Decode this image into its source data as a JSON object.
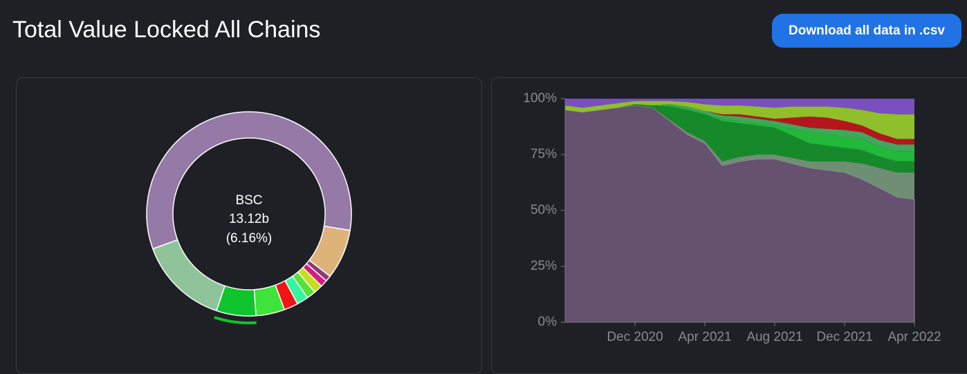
{
  "header": {
    "title": "Total Value Locked All Chains",
    "button": "Download all data in .csv"
  },
  "chart_data": [
    {
      "type": "pie",
      "categories": [
        null,
        null,
        null,
        null,
        null,
        null,
        null,
        null,
        null,
        "BSC",
        null
      ],
      "values": [
        57.5,
        7.8,
        0.9,
        1.1,
        1.4,
        1.4,
        1.8,
        2.2,
        4.5,
        6.16,
        14.14
      ],
      "value_labels": [
        null,
        null,
        null,
        null,
        null,
        null,
        null,
        null,
        null,
        "(6.16%)",
        null
      ],
      "tvl_label": "13.12b",
      "active": 9,
      "colors": [
        "#9579a7",
        "#ddb37a",
        "#8b3a78",
        "#d81b7c",
        "#c5e01a",
        "#54e33c",
        "#35f5a0",
        "#f01414",
        "#3ee43a",
        "#0fc42d",
        "#8fc49a"
      ]
    },
    {
      "type": "area",
      "stacked": true,
      "categories": [
        null,
        null,
        null,
        null,
        "Dec 2020",
        null,
        null,
        null,
        "Apr 2021",
        null,
        null,
        null,
        "Aug 2021",
        null,
        null,
        null,
        "Dec 2021",
        null,
        null,
        null,
        "Apr 2022"
      ],
      "ylim": [
        0,
        100
      ],
      "yticks": [
        {
          "value": 0,
          "label": "0%"
        },
        {
          "value": 25,
          "label": "25%"
        },
        {
          "value": 50,
          "label": "50%"
        },
        {
          "value": 75,
          "label": "75%"
        },
        {
          "value": 100,
          "label": "100%"
        }
      ],
      "series": [
        {
          "color": "#66516f",
          "values": [
            95,
            94,
            95,
            96,
            97,
            96,
            90,
            84,
            80,
            70,
            72,
            73,
            73,
            71,
            69,
            68,
            67,
            64,
            60,
            56,
            55
          ]
        },
        {
          "color": "#6f8f74",
          "values": [
            0,
            0,
            0,
            0,
            0,
            0,
            0.5,
            1,
            1,
            2,
            2,
            2,
            2,
            2.5,
            3,
            4,
            5,
            7,
            9,
            11,
            12
          ]
        },
        {
          "color": "#168a2a",
          "values": [
            0,
            0,
            0,
            0,
            0.5,
            1,
            6,
            10,
            12,
            18,
            15,
            13,
            12,
            10,
            8,
            7,
            6,
            6,
            5,
            5,
            5
          ]
        },
        {
          "color": "#22b83a",
          "values": [
            0,
            0,
            0,
            0,
            0,
            0,
            0.5,
            0.5,
            0.5,
            1,
            1,
            1,
            1,
            3,
            5,
            5,
            5,
            5,
            4.5,
            4.5,
            4.5
          ]
        },
        {
          "color": "#3fa85a",
          "values": [
            0,
            0,
            0,
            0,
            0,
            0,
            0.5,
            1,
            1,
            1.5,
            2,
            2,
            2,
            2,
            2,
            2.5,
            3,
            3,
            3,
            3,
            3
          ]
        },
        {
          "color": "#b5151c",
          "values": [
            0,
            0,
            0,
            0,
            0,
            0,
            0,
            0,
            0,
            0.5,
            1,
            1,
            1,
            3,
            5,
            5,
            4,
            3,
            3,
            2.5,
            2.5
          ]
        },
        {
          "color": "#8fbf2a",
          "values": [
            2,
            2,
            2,
            2,
            1.5,
            2,
            1.5,
            2,
            3,
            4,
            4,
            4.5,
            5,
            5,
            4.5,
            5,
            6,
            7,
            9,
            11,
            11
          ]
        },
        {
          "color": "#7a4fc0",
          "values": [
            3,
            4,
            3,
            2,
            1,
            1,
            1,
            1.5,
            2.5,
            3,
            3,
            3.5,
            4,
            3.5,
            3.5,
            3.5,
            4,
            5,
            6.5,
            7,
            7
          ]
        }
      ]
    }
  ]
}
